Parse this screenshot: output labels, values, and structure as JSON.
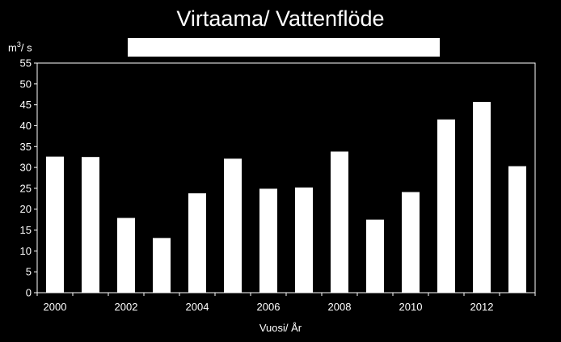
{
  "chart_data": {
    "type": "bar",
    "title": "Virtaama/ Vattenflöde",
    "ylabel_base": "m",
    "ylabel_sup": "3",
    "ylabel_rest": "/ s",
    "xlabel": "Vuosi/ År",
    "categories": [
      "2000",
      "2001",
      "2002",
      "2003",
      "2004",
      "2005",
      "2006",
      "2007",
      "2008",
      "2009",
      "2010",
      "2011",
      "2012",
      "2013"
    ],
    "values": [
      32.6,
      32.5,
      17.9,
      13.1,
      23.8,
      32.1,
      24.9,
      25.2,
      33.8,
      17.5,
      24.1,
      41.5,
      45.7,
      30.3
    ],
    "xtick_labels": [
      "2000",
      "2002",
      "2004",
      "2006",
      "2008",
      "2010",
      "2012"
    ],
    "yticks": [
      0,
      5,
      10,
      15,
      20,
      25,
      30,
      35,
      40,
      45,
      50,
      55
    ],
    "ylim": [
      0,
      55
    ],
    "grid": false,
    "legend": "none",
    "bar_color": "#ffffff",
    "background": "#000000"
  }
}
